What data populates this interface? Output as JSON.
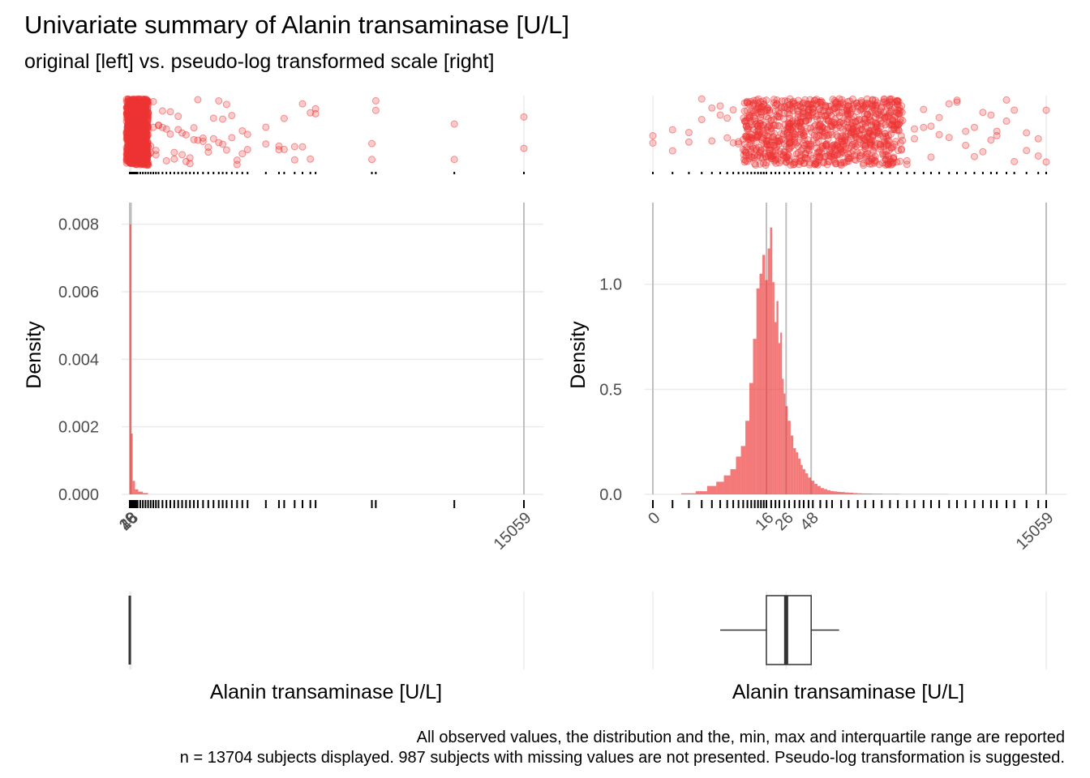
{
  "title": "Univariate summary of Alanin transaminase [U/L]",
  "subtitle": "original [left] vs. pseudo-log transformed scale [right]",
  "caption": [
    "All observed values, the distribution and the, min, max and interquartile range are reported",
    "n = 13704 subjects displayed. 987 subjects with missing values are not presented. Pseudo-log transformation is suggested."
  ],
  "colors": {
    "fill": "#EE3333",
    "rug": "#000000",
    "vline": "#bfbfbf",
    "grid": "#ebebeb",
    "box": "#333333"
  },
  "chart_data": [
    {
      "type": "histogram",
      "panel": "left",
      "scale": "linear",
      "xlabel": "Alanin transaminase [U/L]",
      "ylabel": "Density",
      "xlim": [
        0,
        15059
      ],
      "ylim": [
        0,
        0.0084
      ],
      "yticks": [
        0,
        0.002,
        0.004,
        0.006,
        0.008
      ],
      "ytick_labels": [
        "0.000",
        "0.002",
        "0.004",
        "0.006",
        "0.008"
      ],
      "xticks": [
        0,
        16,
        26,
        48,
        15059
      ],
      "xtick_labels": [
        "0",
        "16",
        "26",
        "48",
        "15059"
      ],
      "vlines": [
        0,
        16,
        26,
        48,
        15059
      ],
      "bins": [
        {
          "x": 25,
          "density": 0.008
        },
        {
          "x": 75,
          "density": 0.0018
        },
        {
          "x": 150,
          "density": 0.0004
        },
        {
          "x": 250,
          "density": 0.00015
        },
        {
          "x": 400,
          "density": 8e-05
        },
        {
          "x": 600,
          "density": 4e-05
        }
      ],
      "rug_values": [
        0,
        30,
        60,
        100,
        150,
        200,
        250,
        300,
        400,
        500,
        600,
        700,
        800,
        900,
        1000,
        1100,
        1250,
        1400,
        1550,
        1700,
        1850,
        2000,
        2150,
        2300,
        2450,
        2600,
        2800,
        3000,
        3200,
        3400,
        3550,
        3700,
        3900,
        4100,
        4300,
        4500,
        5200,
        5700,
        5900,
        6300,
        6600,
        6900,
        7100,
        9250,
        9400,
        12400,
        15059
      ],
      "box": {
        "min": 0,
        "q1": 16,
        "median": 26,
        "q3": 48,
        "max": 15059
      }
    },
    {
      "type": "histogram",
      "panel": "right",
      "scale": "pseudo-log",
      "xlabel": "Alanin transaminase [U/L]",
      "ylabel": "Density",
      "xlim": [
        0,
        15059
      ],
      "ylim": [
        0,
        1.35
      ],
      "yticks": [
        0,
        0.5,
        1.0
      ],
      "ytick_labels": [
        "0.0",
        "0.5",
        "1.0"
      ],
      "xticks": [
        0,
        16,
        26,
        48,
        15059
      ],
      "xtick_labels": [
        "0",
        "16",
        "26",
        "48",
        "15059"
      ],
      "vlines": [
        0,
        16,
        26,
        48,
        15059
      ],
      "hist": {
        "x": [
          2,
          3,
          4,
          5,
          6,
          7,
          8,
          9,
          10,
          11,
          12,
          13,
          14,
          15,
          16,
          17,
          18,
          19,
          20,
          21,
          22,
          23,
          24,
          25,
          26,
          28,
          30,
          32,
          34,
          36,
          38,
          40,
          43,
          46,
          50,
          54,
          58,
          63,
          68,
          74,
          80,
          87,
          95,
          104,
          115,
          127,
          141,
          157,
          176,
          198,
          225,
          255,
          290,
          335,
          390,
          450,
          530,
          620,
          740,
          880,
          1050,
          1250
        ],
        "density": [
          0.005,
          0.015,
          0.04,
          0.06,
          0.09,
          0.12,
          0.18,
          0.23,
          0.35,
          0.53,
          0.74,
          0.98,
          1.05,
          1.14,
          1.02,
          1.17,
          1.27,
          1.01,
          0.82,
          0.92,
          0.72,
          0.77,
          0.55,
          0.48,
          0.42,
          0.35,
          0.28,
          0.22,
          0.2,
          0.17,
          0.14,
          0.12,
          0.1,
          0.08,
          0.065,
          0.05,
          0.04,
          0.03,
          0.025,
          0.02,
          0.016,
          0.014,
          0.012,
          0.011,
          0.009,
          0.008,
          0.006,
          0.005,
          0.004,
          0.004,
          0.003,
          0.003,
          0.002,
          0.002,
          0.002,
          0.001,
          0.001,
          0.001,
          0.001,
          0.001,
          0.001,
          0.001
        ]
      },
      "rug_values": [
        0,
        1,
        2,
        3,
        4,
        5,
        6,
        7,
        8,
        9,
        10,
        11,
        12,
        13,
        14,
        15,
        16,
        18,
        20,
        22,
        25,
        28,
        32,
        36,
        40,
        45,
        50,
        60,
        70,
        80,
        100,
        120,
        150,
        180,
        220,
        270,
        330,
        400,
        500,
        600,
        750,
        900,
        1100,
        1400,
        1700,
        2100,
        2600,
        3200,
        3900,
        4500,
        5700,
        6900,
        9300,
        12400,
        15059
      ],
      "box": {
        "min": 0,
        "q1": 16,
        "median": 26,
        "q3": 48,
        "max": 15059,
        "whisker_low": 5,
        "whisker_high": 95
      }
    }
  ]
}
